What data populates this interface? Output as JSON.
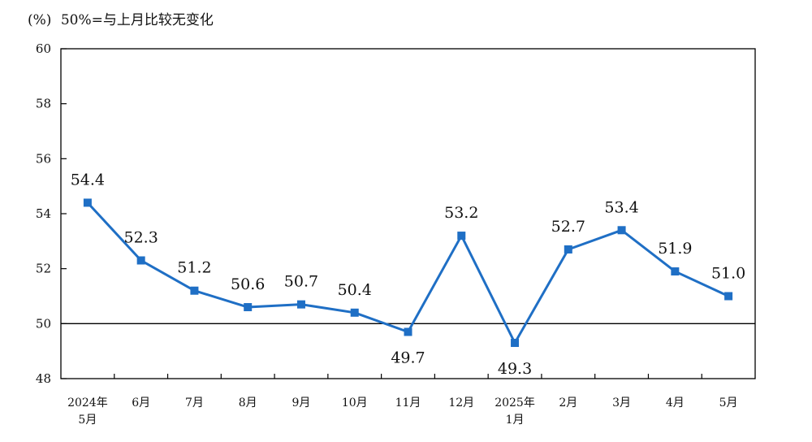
{
  "header": {
    "unit": "(%)",
    "note": "50%=与上月比较无变化"
  },
  "colors": {
    "series": "#1f6fc5",
    "axis": "#000000",
    "reference_line": "#000000"
  },
  "chart_data": {
    "type": "line",
    "title": "",
    "xlabel": "",
    "ylabel": "(%)",
    "ylim": [
      48,
      60
    ],
    "yticks": [
      48,
      50,
      52,
      54,
      56,
      58,
      60
    ],
    "reference_value": 50,
    "grid": false,
    "categories": [
      [
        "2024年",
        "5月"
      ],
      [
        "6月"
      ],
      [
        "7月"
      ],
      [
        "8月"
      ],
      [
        "9月"
      ],
      [
        "10月"
      ],
      [
        "11月"
      ],
      [
        "12月"
      ],
      [
        "2025年",
        "1月"
      ],
      [
        "2月"
      ],
      [
        "3月"
      ],
      [
        "4月"
      ],
      [
        "5月"
      ]
    ],
    "series": [
      {
        "name": "",
        "marker": "square",
        "values": [
          54.4,
          52.3,
          51.2,
          50.6,
          50.7,
          50.4,
          49.7,
          53.2,
          49.3,
          52.7,
          53.4,
          51.9,
          51.0
        ],
        "labels": [
          "54.4",
          "52.3",
          "51.2",
          "50.6",
          "50.7",
          "50.4",
          "49.7",
          "53.2",
          "49.3",
          "52.7",
          "53.4",
          "51.9",
          "51.0"
        ]
      }
    ]
  }
}
